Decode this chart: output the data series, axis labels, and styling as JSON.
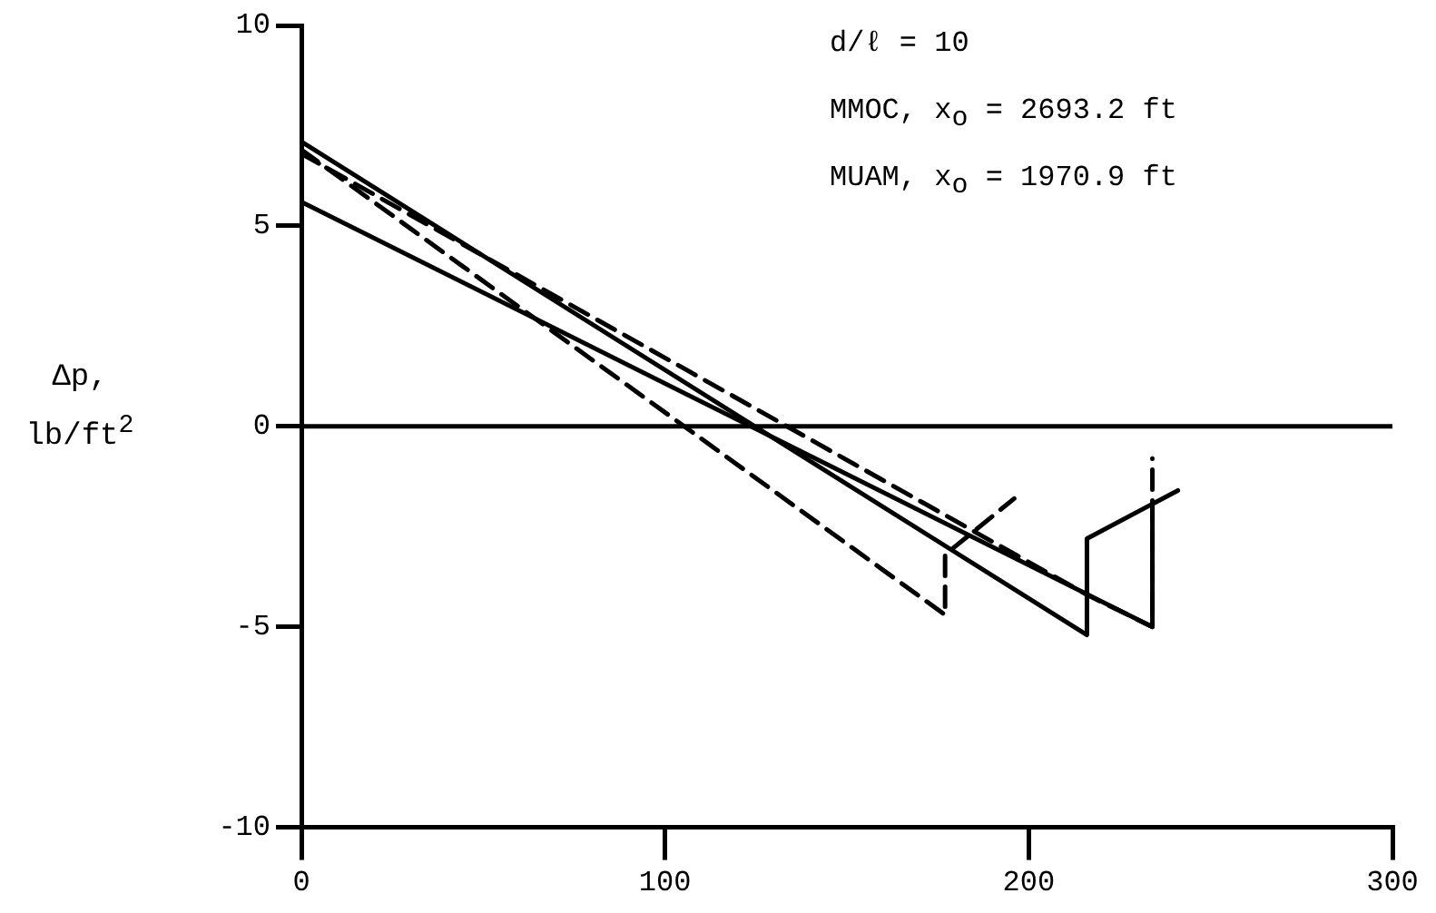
{
  "chart_data": {
    "type": "line",
    "ylabel": "Δp, lb/ft$^{2}$",
    "annotations": [
      "d/ℓ = 10",
      "MMOC, x$_{o}$ = 2693.2 ft",
      "MUAM, x$_{o}$ = 1970.9 ft"
    ],
    "xlim": [
      0,
      300
    ],
    "xticks": [
      0,
      100,
      200,
      300
    ],
    "ylim": [
      -10,
      10
    ],
    "yticks": [
      -10,
      -5,
      0,
      5,
      10
    ],
    "grid": false,
    "legend": false,
    "marker": "none",
    "series": [
      {
        "color": "#000000",
        "line_style": "solid",
        "x": [
          0,
          0,
          216,
          216,
          241
        ],
        "values": [
          0,
          7.1,
          -5.2,
          -2.8,
          -1.6
        ]
      },
      {
        "color": "#000000",
        "line_style": "solid",
        "x": [
          0,
          234,
          234
        ],
        "values": [
          5.6,
          -5.0,
          -2.0
        ]
      },
      {
        "color": "#000000",
        "line_style": "dashed",
        "x": [
          0,
          177,
          177,
          196
        ],
        "values": [
          6.9,
          -4.7,
          -3.2,
          -1.8
        ]
      },
      {
        "color": "#000000",
        "line_style": "dashed",
        "x": [
          0,
          216,
          234,
          234
        ],
        "values": [
          6.8,
          -4.2,
          -5.0,
          -0.8
        ]
      }
    ],
    "ref_lines": [
      {
        "axis": "y",
        "value": 0,
        "color": "#000000",
        "line_style": "solid"
      }
    ]
  }
}
